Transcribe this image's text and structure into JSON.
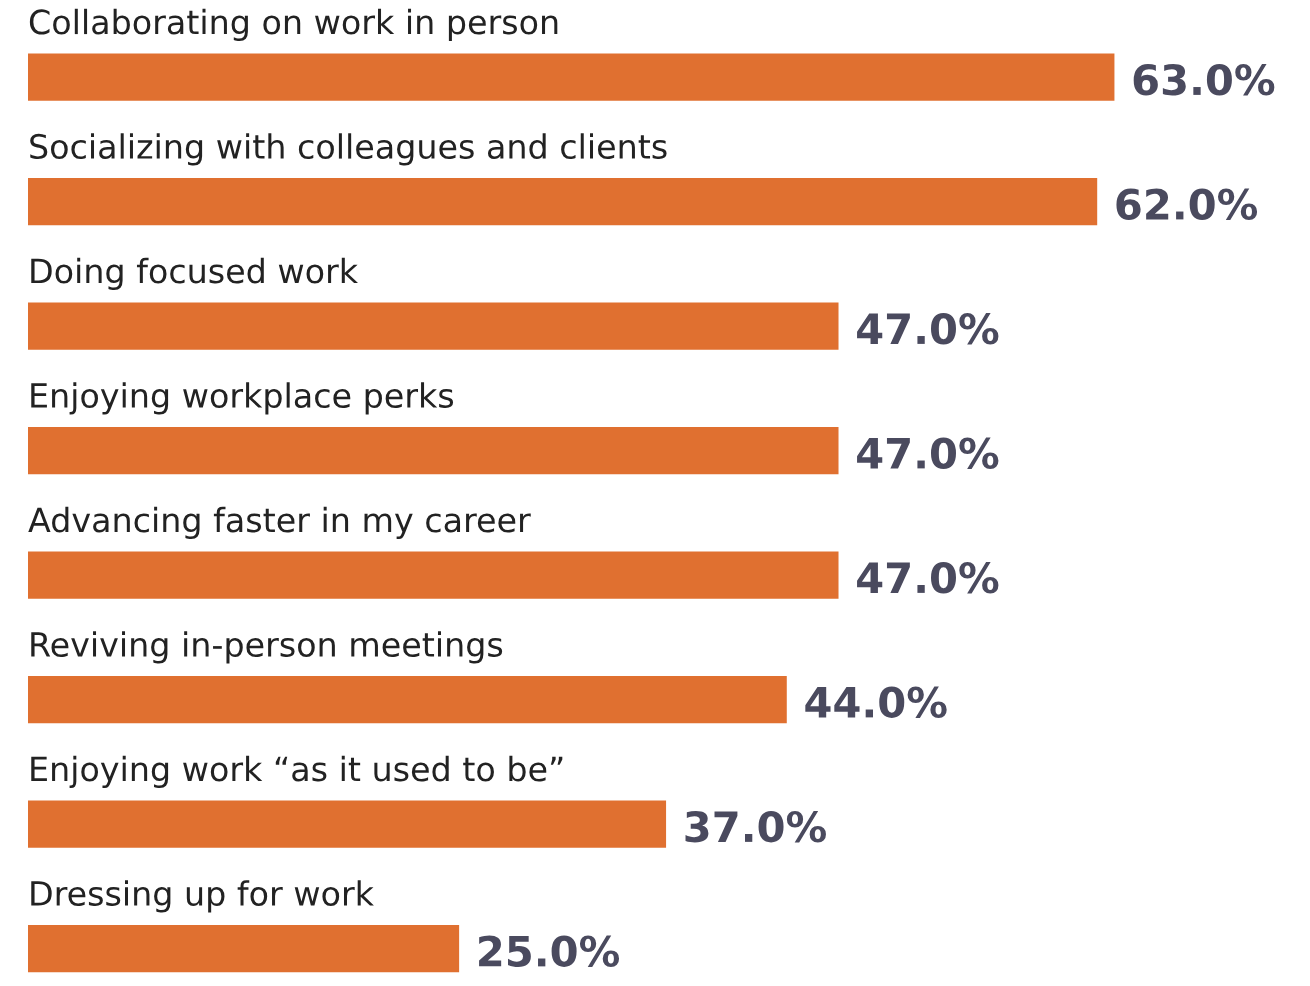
{
  "chart_data": {
    "type": "bar",
    "orientation": "horizontal",
    "categories": [
      "Collaborating on work in person",
      "Socializing with colleagues and clients",
      "Doing focused work",
      "Enjoying workplace perks",
      "Advancing faster in my career",
      "Reviving in-person meetings",
      "Enjoying work “as it used to be”",
      "Dressing up for work"
    ],
    "values": [
      63.0,
      62.0,
      47.0,
      47.0,
      47.0,
      44.0,
      37.0,
      25.0
    ],
    "value_labels": [
      "63.0%",
      "62.0%",
      "47.0%",
      "47.0%",
      "47.0%",
      "44.0%",
      "37.0%",
      "25.0%"
    ],
    "color": "#e07030",
    "tick_labels": false
  }
}
